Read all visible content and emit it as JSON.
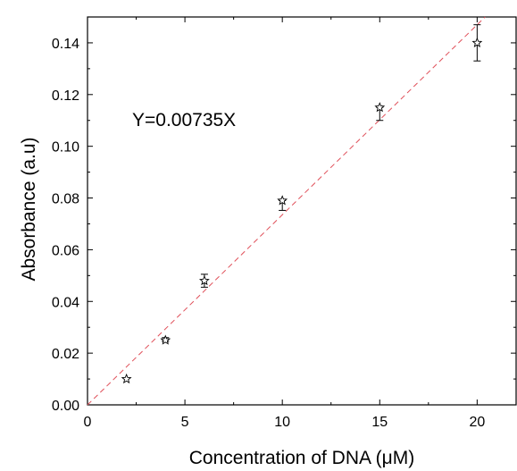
{
  "chart_data": {
    "type": "scatter",
    "xlabel": "Concentration of DNA (μM)",
    "ylabel": "Absorbance (a.u)",
    "annotation": "Y=0.00735X",
    "xlim": [
      0,
      22
    ],
    "ylim": [
      0,
      0.15
    ],
    "x_ticks": [
      0,
      5,
      10,
      15,
      20
    ],
    "y_ticks": [
      0.0,
      0.02,
      0.04,
      0.06,
      0.08,
      0.1,
      0.12,
      0.14
    ],
    "series": [
      {
        "marker": "star",
        "x": [
          2,
          4,
          6,
          10,
          15,
          20
        ],
        "y": [
          0.01,
          0.025,
          0.048,
          0.079,
          0.115,
          0.14
        ],
        "error_low": [
          0.01,
          0.0245,
          0.0455,
          0.0752,
          0.11,
          0.133
        ],
        "error_high": [
          0.01,
          0.026,
          0.0505,
          0.079,
          0.115,
          0.147
        ]
      }
    ],
    "fit_line": {
      "slope": 0.00735,
      "intercept": 0,
      "color": "#e0505a",
      "style": "dashed"
    },
    "grid": false,
    "legend": "none"
  }
}
